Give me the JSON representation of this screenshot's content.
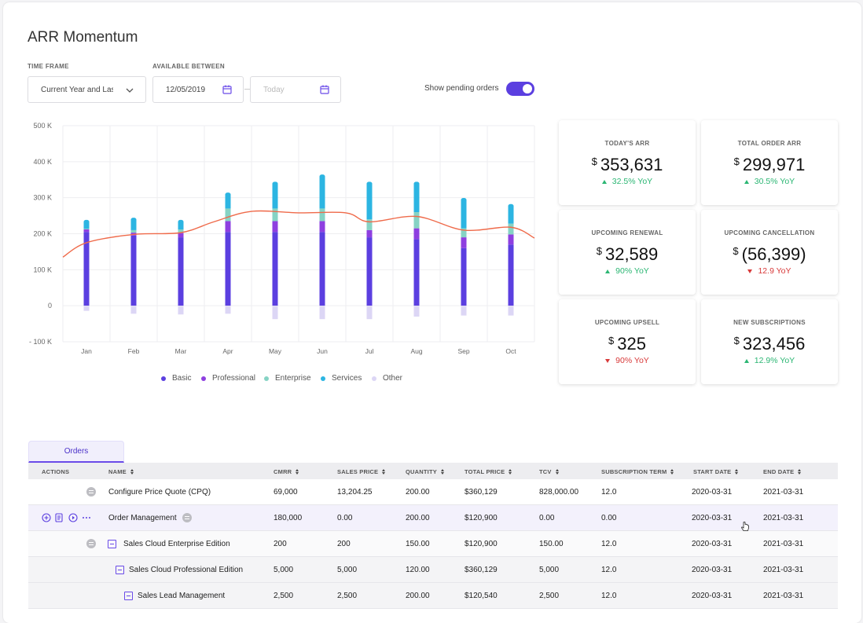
{
  "page_title": "ARR Momentum",
  "filters": {
    "time_frame_label": "TIME FRAME",
    "time_frame_value": "Current Year and Las",
    "available_between_label": "AVAILABLE BETWEEN",
    "start_date": "12/05/2019",
    "end_date_placeholder": "Today",
    "pending_toggle_label": "Show pending orders",
    "pending_toggle_on": true
  },
  "chart_data": {
    "type": "bar",
    "stacked": true,
    "overlay_line": true,
    "categories": [
      "Jan",
      "Feb",
      "Mar",
      "Apr",
      "May",
      "Jun",
      "Jul",
      "Aug",
      "Sep",
      "Oct"
    ],
    "y_ticks": [
      "500 K",
      "400 K",
      "300 K",
      "200 K",
      "100 K",
      "0",
      "- 100 K"
    ],
    "ylim": [
      -100,
      500
    ],
    "grid": true,
    "series": [
      {
        "name": "Basic",
        "color": "#5b3fe0",
        "values": [
          205,
          195,
          190,
          205,
          205,
          205,
          190,
          185,
          160,
          170
        ]
      },
      {
        "name": "Professional",
        "color": "#8e3fe0",
        "values": [
          7,
          8,
          12,
          30,
          30,
          30,
          20,
          30,
          30,
          28
        ]
      },
      {
        "name": "Enterprise",
        "color": "#86d3c4",
        "values": [
          2,
          7,
          10,
          35,
          35,
          35,
          30,
          45,
          25,
          30
        ]
      },
      {
        "name": "Services",
        "color": "#2cb5e2",
        "values": [
          20,
          30,
          22,
          40,
          70,
          90,
          100,
          80,
          80,
          50
        ]
      },
      {
        "name": "Other",
        "color": "#dcd6f5",
        "values": [
          -12,
          -20,
          -22,
          -20,
          -35,
          -35,
          -35,
          -28,
          -25,
          -25
        ]
      }
    ],
    "line": {
      "color": "#ef6a4a",
      "values": [
        135,
        175,
        198,
        203,
        233,
        262,
        258,
        258,
        233,
        248,
        210,
        218,
        188
      ],
      "x_positions": [
        -0.5,
        0,
        1,
        2,
        2.7,
        3.5,
        4.5,
        5.5,
        6,
        7,
        8,
        9,
        9.5
      ]
    },
    "legend_position": "bottom"
  },
  "kpis": [
    {
      "label": "TODAY'S ARR",
      "currency": "$",
      "value": "353,631",
      "change": "32.5% YoY",
      "direction": "up"
    },
    {
      "label": "TOTAL ORDER ARR",
      "currency": "$",
      "value": "299,971",
      "change": "30.5% YoY",
      "direction": "up"
    },
    {
      "label": "UPCOMING RENEWAL",
      "currency": "$",
      "value": "32,589",
      "change": "90% YoY",
      "direction": "up"
    },
    {
      "label": "UPCOMING CANCELLATION",
      "currency": "$",
      "value": "(56,399)",
      "change": "12.9 YoY",
      "direction": "down"
    },
    {
      "label": "UPCOMING UPSELL",
      "currency": "$",
      "value": "325",
      "change": "90% YoY",
      "direction": "down"
    },
    {
      "label": "NEW SUBSCRIPTIONS",
      "currency": "$",
      "value": "323,456",
      "change": "12.9% YoY",
      "direction": "up"
    }
  ],
  "orders": {
    "tab_label": "Orders",
    "columns": [
      "ACTIONS",
      "NAME",
      "CMRR",
      "SALES PRICE",
      "QUANTITY",
      "TOTAL PRICE",
      "TCV",
      "SUBSCRIPTION TERM",
      "START DATE",
      "END DATE"
    ],
    "rows": [
      {
        "name": "Configure Price Quote (CPQ)",
        "cmrr": "69,000",
        "sales_price": "13,204.25",
        "quantity": "200.00",
        "total_price": "$360,129",
        "tcv": "828,000.00",
        "term": "12.0",
        "start": "2020-03-31",
        "end": "2021-03-31"
      },
      {
        "name": "Order Management",
        "cmrr": "180,000",
        "sales_price": "0.00",
        "quantity": "200.00",
        "total_price": "$120,900",
        "tcv": "0.00",
        "term": "0.00",
        "start": "2020-03-31",
        "end": "2021-03-31"
      },
      {
        "name": "Sales Cloud Enterprise Edition",
        "cmrr": "200",
        "sales_price": "200",
        "quantity": "150.00",
        "total_price": "$120,900",
        "tcv": "150.00",
        "term": "12.0",
        "start": "2020-03-31",
        "end": "2021-03-31"
      },
      {
        "name": "Sales Cloud Professional Edition",
        "cmrr": "5,000",
        "sales_price": "5,000",
        "quantity": "120.00",
        "total_price": "$360,129",
        "tcv": "5,000",
        "term": "12.0",
        "start": "2020-03-31",
        "end": "2021-03-31"
      },
      {
        "name": "Sales Lead Management",
        "cmrr": "2,500",
        "sales_price": "2,500",
        "quantity": "200.00",
        "total_price": "$120,540",
        "tcv": "2,500",
        "term": "12.0",
        "start": "2020-03-31",
        "end": "2021-03-31"
      }
    ]
  }
}
